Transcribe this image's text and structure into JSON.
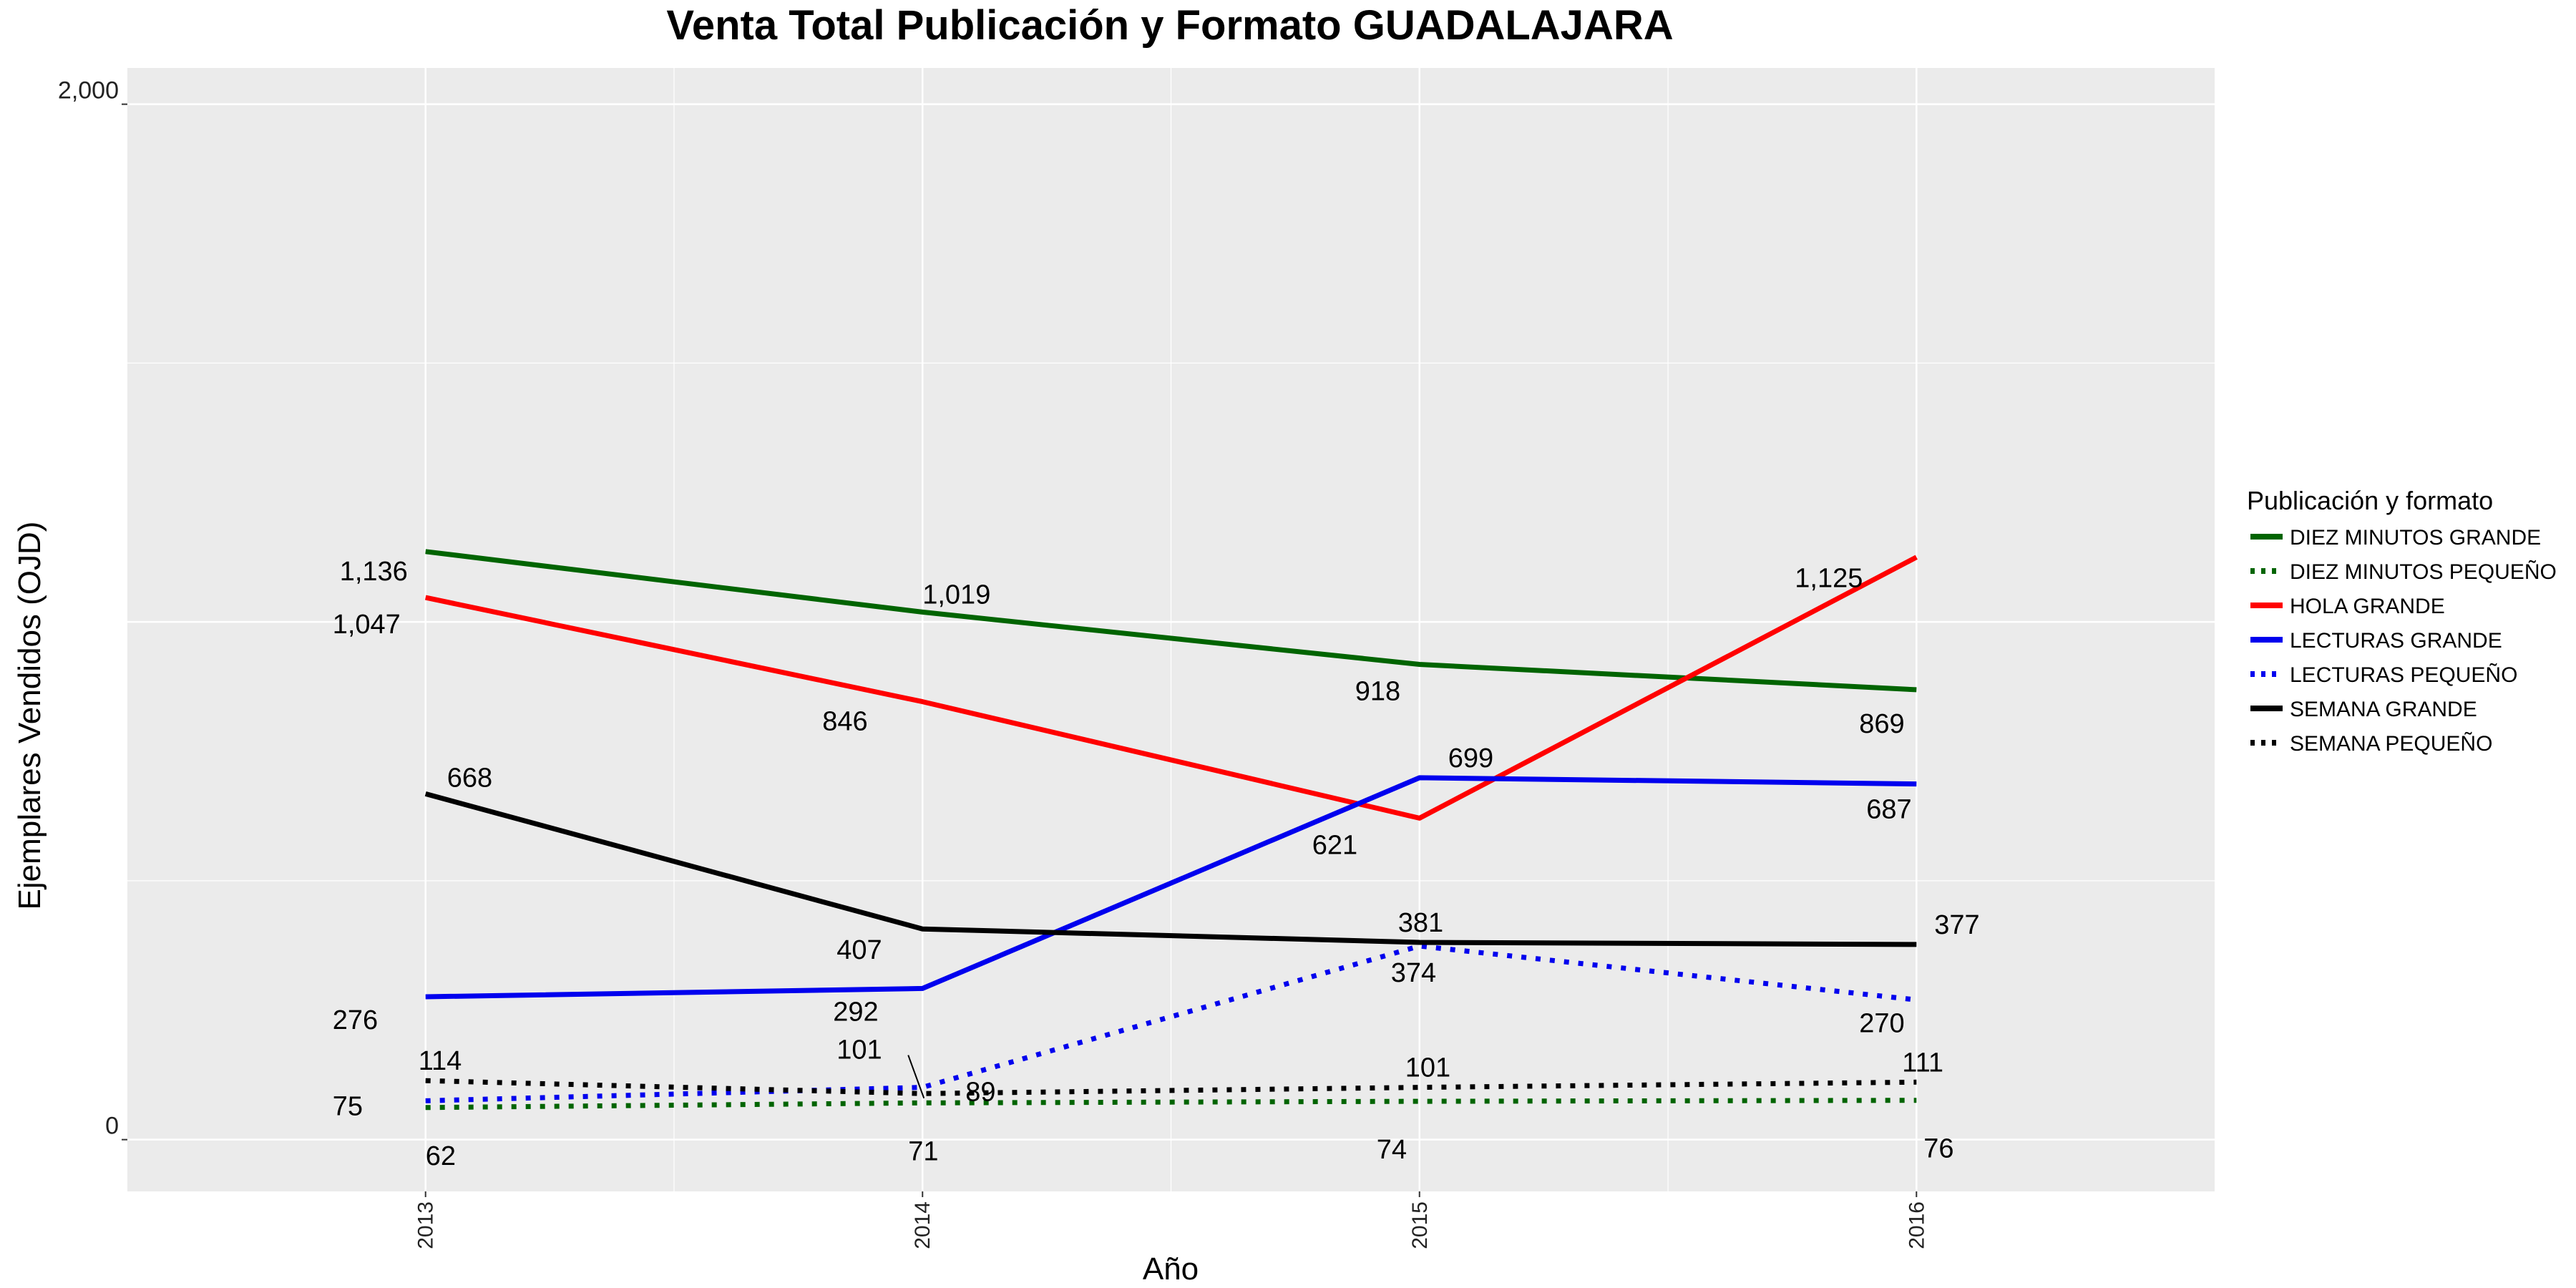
{
  "chart_data": {
    "type": "line",
    "title": "Venta Total Publicación y Formato  GUADALAJARA",
    "xlabel": "Año",
    "ylabel": "Ejemplares Vendidos (OJD)",
    "x": [
      "2013",
      "2014",
      "2015",
      "2016"
    ],
    "ylim": [
      -100,
      2070
    ],
    "xlim": [
      2012.4,
      2016.6
    ],
    "yticks": [
      0,
      2000
    ],
    "ytick_labels": [
      "0",
      "2,000"
    ],
    "grid": true,
    "legend_title": "Publicación y formato",
    "legend_position": "right",
    "series": [
      {
        "name": "DIEZ MINUTOS GRANDE",
        "color": "#006400",
        "dash": "solid",
        "values": [
          1136,
          1019,
          918,
          869
        ],
        "labels": [
          "1,136",
          "1,019",
          "918",
          "869"
        ]
      },
      {
        "name": "DIEZ MINUTOS PEQUEÑO",
        "color": "#006400",
        "dash": "dotted",
        "values": [
          62,
          71,
          74,
          76
        ],
        "labels": [
          "62",
          "71",
          "74",
          "76"
        ]
      },
      {
        "name": "HOLA GRANDE",
        "color": "#ff0000",
        "dash": "solid",
        "values": [
          1047,
          846,
          621,
          1125
        ],
        "labels": [
          "1,047",
          "846",
          "621",
          "1,125"
        ]
      },
      {
        "name": "LECTURAS GRANDE",
        "color": "#0000ee",
        "dash": "solid",
        "values": [
          276,
          292,
          699,
          687
        ],
        "labels": [
          "276",
          "292",
          "699",
          "687"
        ]
      },
      {
        "name": "LECTURAS PEQUEÑO",
        "color": "#0000ee",
        "dash": "dotted",
        "values": [
          75,
          101,
          374,
          270
        ],
        "labels": [
          "75",
          "101",
          "374",
          "270"
        ]
      },
      {
        "name": "SEMANA GRANDE",
        "color": "#000000",
        "dash": "solid",
        "values": [
          668,
          407,
          381,
          377
        ],
        "labels": [
          "668",
          "407",
          "381",
          "377"
        ]
      },
      {
        "name": "SEMANA PEQUEÑO",
        "color": "#000000",
        "dash": "dotted",
        "values": [
          114,
          89,
          101,
          111
        ],
        "labels": [
          "114",
          "89",
          "101",
          "111"
        ]
      }
    ]
  }
}
